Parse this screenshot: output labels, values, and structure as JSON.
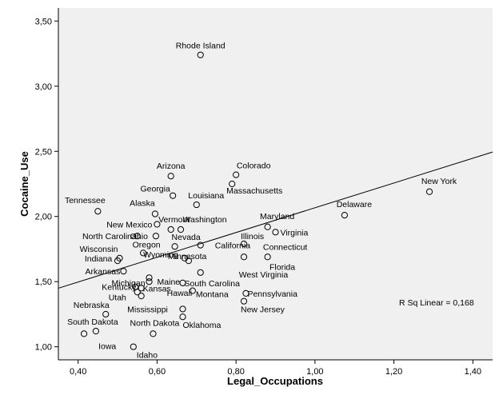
{
  "chart_data": {
    "type": "scatter",
    "title": "",
    "xlabel": "Legal_Occupations",
    "ylabel": "Cocaine_Use",
    "xlim": [
      0.35,
      1.45
    ],
    "ylim": [
      0.9,
      3.6
    ],
    "xticks": [
      0.4,
      0.6,
      0.8,
      1.0,
      1.2,
      1.4
    ],
    "xtick_labels": [
      "0,40",
      "0,60",
      "0,80",
      "1,00",
      "1,20",
      "1,40"
    ],
    "yticks": [
      1.0,
      1.5,
      2.0,
      2.5,
      3.0,
      3.5
    ],
    "ytick_labels": [
      "1,00",
      "1,50",
      "2,00",
      "2,50",
      "3,00",
      "3,50"
    ],
    "grid": false,
    "background": "#f0f0f0",
    "marker_color": "#000000",
    "fit_line": {
      "type": "linear",
      "intercept": 1.117,
      "slope": 0.95
    },
    "r_sq_label": "R Sq Linear = 0,168",
    "points": [
      {
        "label": "Rhode Island",
        "x": 0.71,
        "y": 3.24
      },
      {
        "label": "Arizona",
        "x": 0.635,
        "y": 2.31
      },
      {
        "label": "Colorado",
        "x": 0.8,
        "y": 2.32
      },
      {
        "label": "Georgia",
        "x": 0.64,
        "y": 2.16
      },
      {
        "label": "Massachusetts",
        "x": 0.79,
        "y": 2.25
      },
      {
        "label": "Louisiana",
        "x": 0.7,
        "y": 2.09
      },
      {
        "label": "Tennessee",
        "x": 0.45,
        "y": 2.04
      },
      {
        "label": "Alaska",
        "x": 0.595,
        "y": 2.02
      },
      {
        "label": "New York",
        "x": 1.29,
        "y": 2.19
      },
      {
        "label": "Delaware",
        "x": 1.075,
        "y": 2.01
      },
      {
        "label": "New Mexico",
        "x": 0.6,
        "y": 1.94
      },
      {
        "label": "Vermont",
        "x": 0.635,
        "y": 1.9
      },
      {
        "label": "Washington",
        "x": 0.66,
        "y": 1.9
      },
      {
        "label": "Maryland",
        "x": 0.88,
        "y": 1.92
      },
      {
        "label": "Virginia",
        "x": 0.9,
        "y": 1.88
      },
      {
        "label": "North Carolina",
        "x": 0.55,
        "y": 1.85
      },
      {
        "label": "Ohio",
        "x": 0.597,
        "y": 1.85
      },
      {
        "label": "Nevada",
        "x": 0.645,
        "y": 1.77
      },
      {
        "label": "Illinois",
        "x": 0.82,
        "y": 1.79
      },
      {
        "label": "Oregon",
        "x": 0.565,
        "y": 1.72
      },
      {
        "label": "California",
        "x": 0.71,
        "y": 1.78
      },
      {
        "label": "Connecticut",
        "x": 0.88,
        "y": 1.69
      },
      {
        "label": "Wisconsin",
        "x": 0.505,
        "y": 1.68
      },
      {
        "label": "Wyoming",
        "x": 0.67,
        "y": 1.68
      },
      {
        "label": "Indiana",
        "x": 0.5,
        "y": 1.66
      },
      {
        "label": "Minnesota",
        "x": 0.68,
        "y": 1.66
      },
      {
        "label": "Florida",
        "x": 0.82,
        "y": 1.69
      },
      {
        "label": "Arkansas",
        "x": 0.515,
        "y": 1.58
      },
      {
        "label": "West Virginia",
        "x": 0.71,
        "y": 1.57
      },
      {
        "label": "South Carolina",
        "x": 0.665,
        "y": 1.49
      },
      {
        "label": "Michigan",
        "x": 0.58,
        "y": 1.53
      },
      {
        "label": "Maine",
        "x": 0.58,
        "y": 1.5
      },
      {
        "label": "Kentucky",
        "x": 0.545,
        "y": 1.46
      },
      {
        "label": "Kansas",
        "x": 0.56,
        "y": 1.45
      },
      {
        "label": "Utah",
        "x": 0.55,
        "y": 1.42
      },
      {
        "label": "Hawaii",
        "x": 0.56,
        "y": 1.39
      },
      {
        "label": "Montana",
        "x": 0.69,
        "y": 1.43
      },
      {
        "label": "Pennsylvania",
        "x": 0.825,
        "y": 1.41
      },
      {
        "label": "New Jersey",
        "x": 0.82,
        "y": 1.35
      },
      {
        "label": "Mississippi",
        "x": 0.665,
        "y": 1.29
      },
      {
        "label": "Oklahoma",
        "x": 0.665,
        "y": 1.23
      },
      {
        "label": "Nebraska",
        "x": 0.47,
        "y": 1.25
      },
      {
        "label": "South Dakota",
        "x": 0.445,
        "y": 1.12
      },
      {
        "label": "North Dakota",
        "x": 0.59,
        "y": 1.1
      },
      {
        "label": "Iowa",
        "x": 0.415,
        "y": 1.1
      },
      {
        "label": "Idaho",
        "x": 0.54,
        "y": 1.0
      }
    ]
  }
}
